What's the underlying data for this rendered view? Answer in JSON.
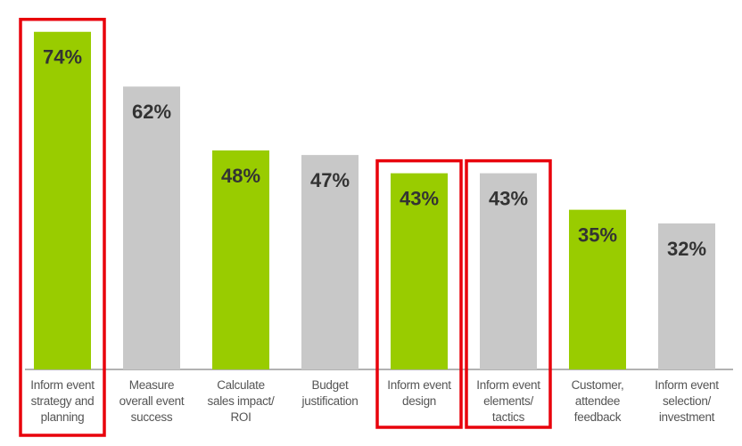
{
  "chart_data": {
    "type": "bar",
    "categories": [
      "Inform event\nstrategy and\nplanning",
      "Measure\noverall event\nsuccess",
      "Calculate\nsales impact/\nROI",
      "Budget\njustification",
      "Inform event\ndesign",
      "Inform event\nelements/\ntactics",
      "Customer,\nattendee\nfeedback",
      "Inform event\nselection/\ninvestment"
    ],
    "values": [
      74,
      62,
      48,
      47,
      43,
      43,
      35,
      32
    ],
    "value_labels": [
      "74%",
      "62%",
      "48%",
      "47%",
      "43%",
      "43%",
      "35%",
      "32%"
    ],
    "colors": [
      "#99cc00",
      "#c8c8c8",
      "#99cc00",
      "#c8c8c8",
      "#99cc00",
      "#c8c8c8",
      "#99cc00",
      "#c8c8c8"
    ],
    "highlighted": [
      true,
      false,
      false,
      false,
      true,
      true,
      false,
      false
    ],
    "highlight_color": "#e8000b",
    "ylim": [
      0,
      80
    ]
  }
}
